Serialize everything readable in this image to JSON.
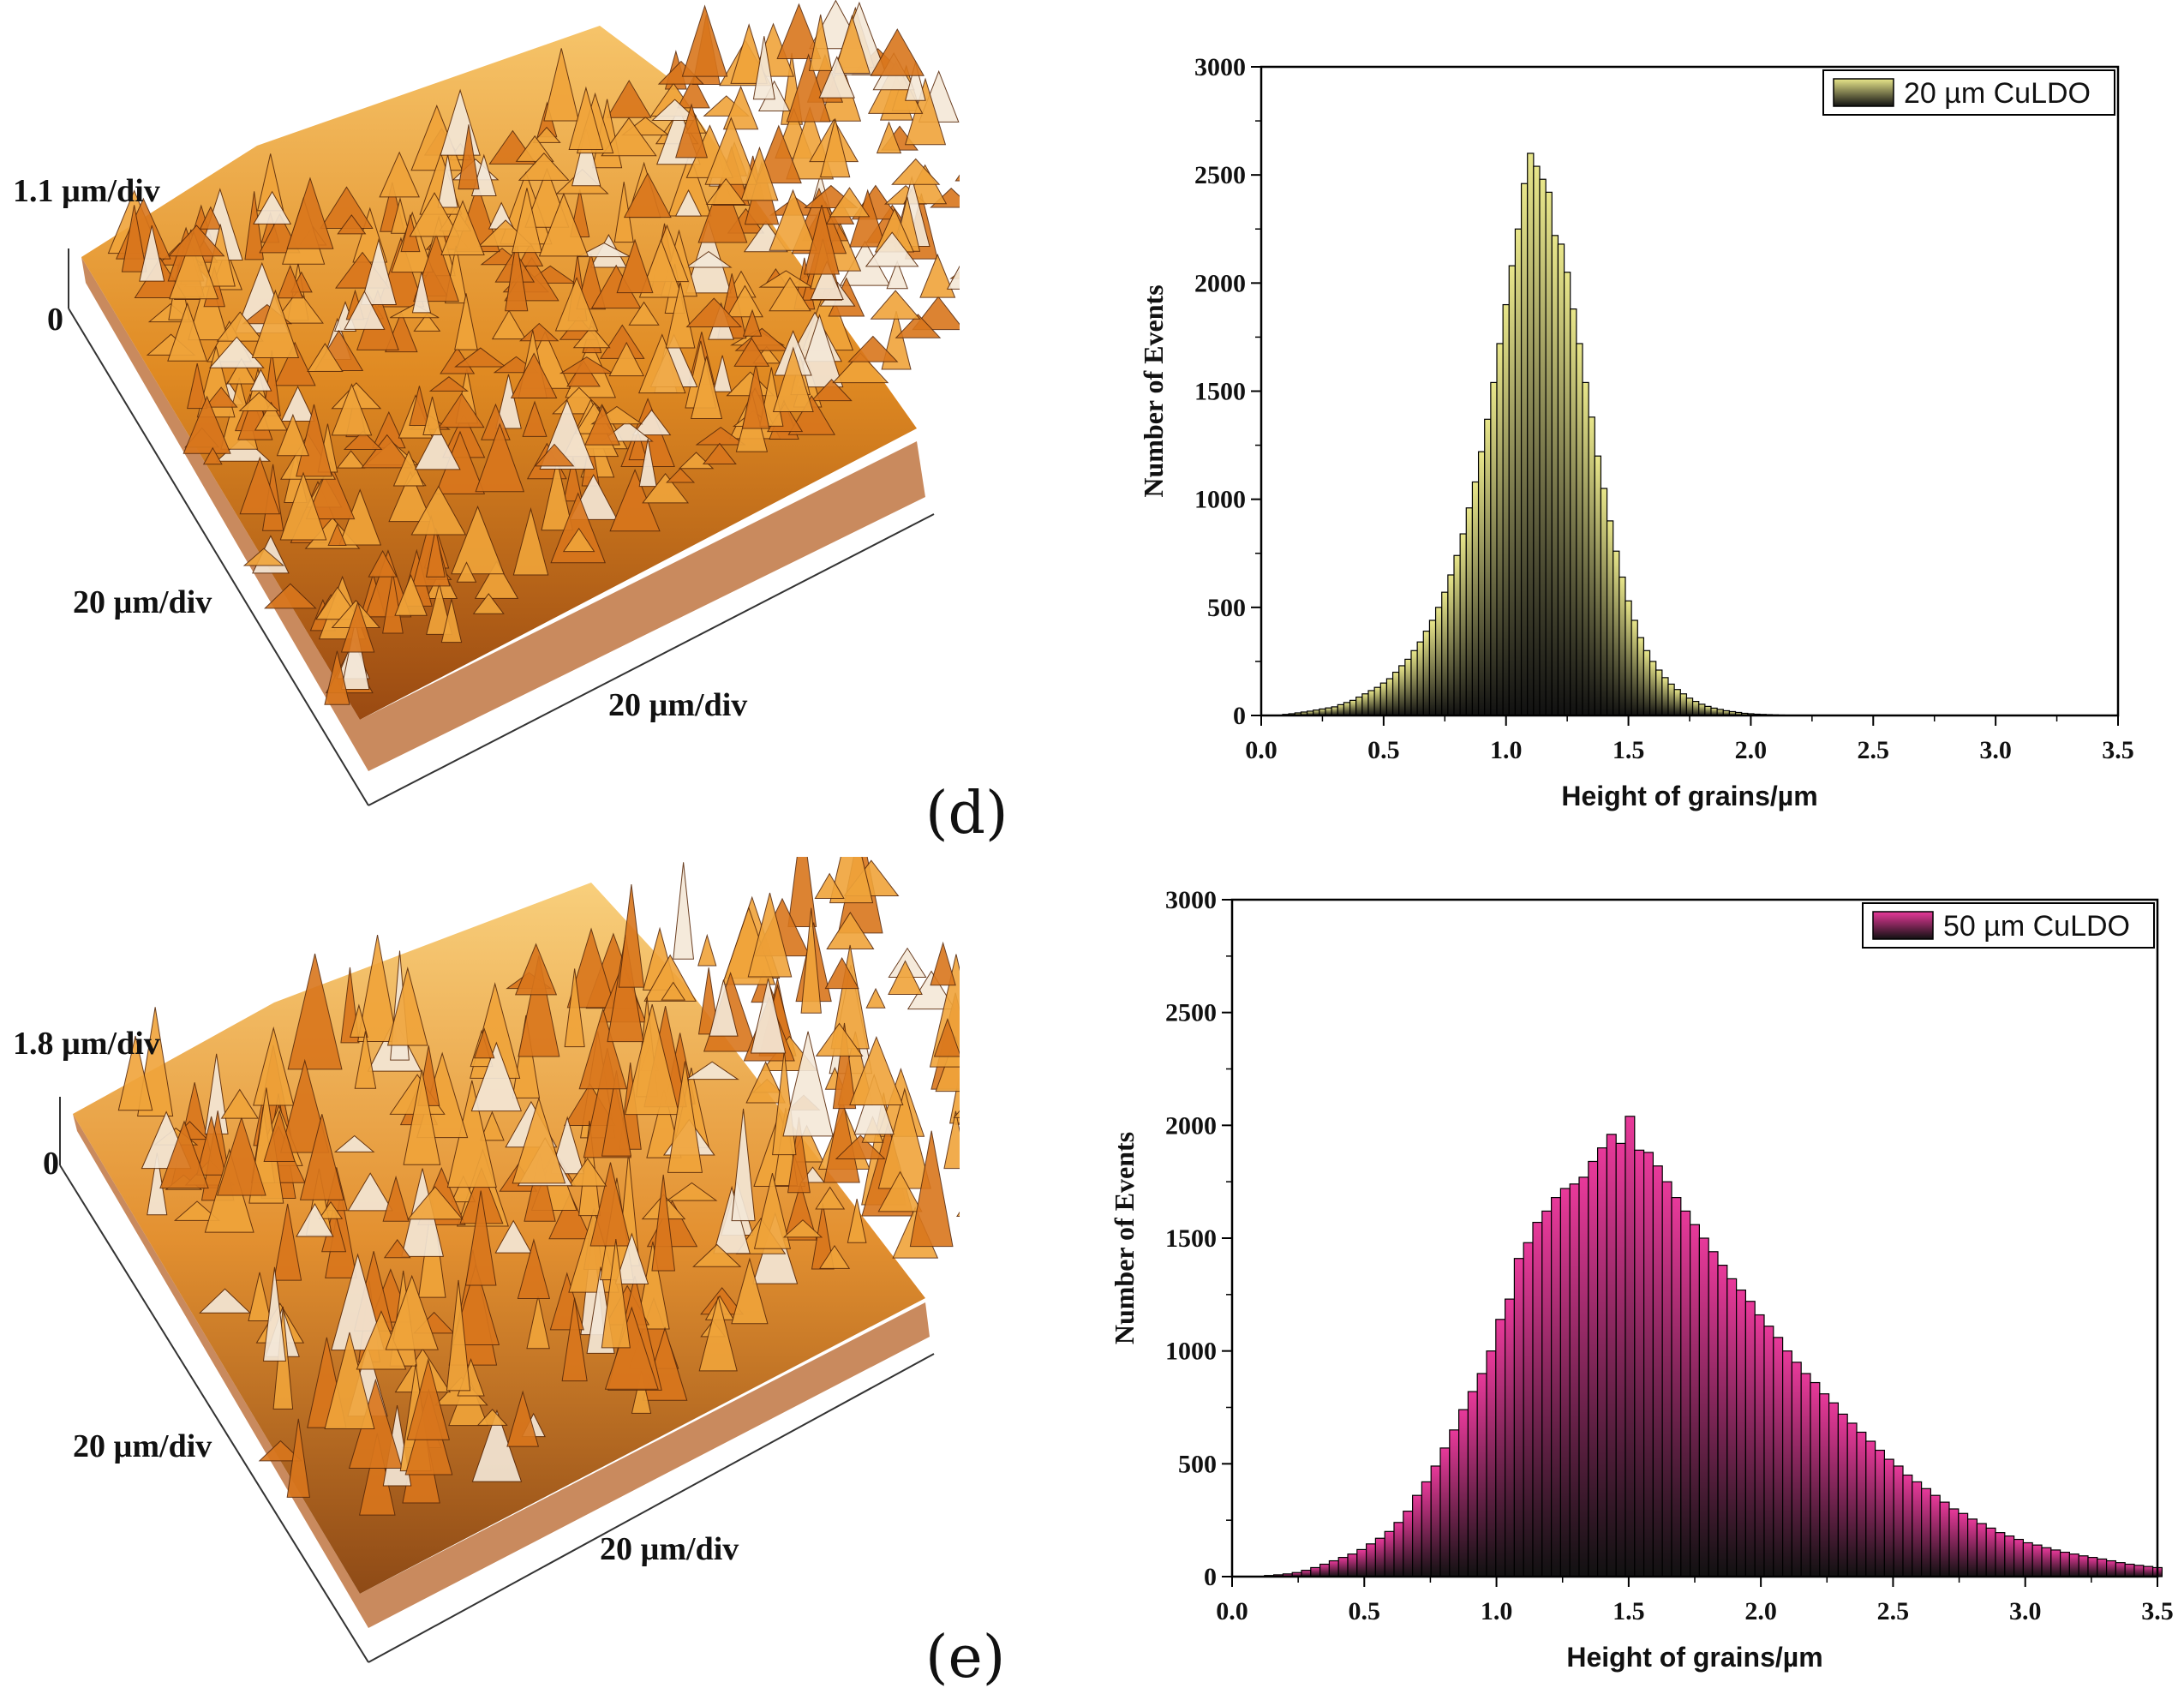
{
  "panels": {
    "d": {
      "label": "(d)",
      "afm": {
        "z_label": "1.1 µm/div",
        "zero_label": "0",
        "x_label": "20 µm/div",
        "y_label": "20 µm/div"
      }
    },
    "e": {
      "label": "(e)",
      "afm": {
        "z_label": "1.8 µm/div",
        "zero_label": "0",
        "x_label": "20 µm/div",
        "y_label": "20 µm/div"
      }
    }
  },
  "chart_data": [
    {
      "type": "bar",
      "panel": "d",
      "title": "",
      "xlabel": "Height of grains/µm",
      "ylabel": "Number of Events",
      "xlim": [
        0,
        3.5
      ],
      "ylim": [
        0,
        3000
      ],
      "xticks": [
        "0.0",
        "0.5",
        "1.0",
        "1.5",
        "2.0",
        "2.5",
        "3.0",
        "3.5"
      ],
      "yticks": [
        "0",
        "500",
        "1000",
        "1500",
        "2000",
        "2500",
        "3000"
      ],
      "legend": "20 µm CuLDO",
      "legend_position": "top-right",
      "bin_width": 0.025,
      "bar_color": "#e8e68a",
      "bins": [
        [
          0.1,
          5
        ],
        [
          0.125,
          8
        ],
        [
          0.15,
          12
        ],
        [
          0.175,
          16
        ],
        [
          0.2,
          20
        ],
        [
          0.225,
          25
        ],
        [
          0.25,
          30
        ],
        [
          0.275,
          35
        ],
        [
          0.3,
          40
        ],
        [
          0.325,
          50
        ],
        [
          0.35,
          60
        ],
        [
          0.375,
          70
        ],
        [
          0.4,
          85
        ],
        [
          0.425,
          100
        ],
        [
          0.45,
          115
        ],
        [
          0.475,
          130
        ],
        [
          0.5,
          150
        ],
        [
          0.525,
          170
        ],
        [
          0.55,
          200
        ],
        [
          0.575,
          230
        ],
        [
          0.6,
          260
        ],
        [
          0.625,
          300
        ],
        [
          0.65,
          340
        ],
        [
          0.675,
          390
        ],
        [
          0.7,
          440
        ],
        [
          0.725,
          500
        ],
        [
          0.75,
          570
        ],
        [
          0.775,
          650
        ],
        [
          0.8,
          740
        ],
        [
          0.825,
          840
        ],
        [
          0.85,
          960
        ],
        [
          0.875,
          1080
        ],
        [
          0.9,
          1220
        ],
        [
          0.925,
          1370
        ],
        [
          0.95,
          1540
        ],
        [
          0.975,
          1720
        ],
        [
          1.0,
          1900
        ],
        [
          1.025,
          2080
        ],
        [
          1.05,
          2250
        ],
        [
          1.075,
          2460
        ],
        [
          1.1,
          2600
        ],
        [
          1.125,
          2540
        ],
        [
          1.15,
          2480
        ],
        [
          1.175,
          2420
        ],
        [
          1.2,
          2220
        ],
        [
          1.225,
          2180
        ],
        [
          1.25,
          2050
        ],
        [
          1.275,
          1880
        ],
        [
          1.3,
          1720
        ],
        [
          1.325,
          1540
        ],
        [
          1.35,
          1380
        ],
        [
          1.375,
          1200
        ],
        [
          1.4,
          1050
        ],
        [
          1.425,
          900
        ],
        [
          1.45,
          760
        ],
        [
          1.475,
          640
        ],
        [
          1.5,
          530
        ],
        [
          1.525,
          440
        ],
        [
          1.55,
          360
        ],
        [
          1.575,
          300
        ],
        [
          1.6,
          250
        ],
        [
          1.625,
          210
        ],
        [
          1.65,
          175
        ],
        [
          1.675,
          145
        ],
        [
          1.7,
          120
        ],
        [
          1.725,
          100
        ],
        [
          1.75,
          80
        ],
        [
          1.775,
          65
        ],
        [
          1.8,
          52
        ],
        [
          1.825,
          42
        ],
        [
          1.85,
          34
        ],
        [
          1.875,
          28
        ],
        [
          1.9,
          22
        ],
        [
          1.925,
          18
        ],
        [
          1.95,
          14
        ],
        [
          1.975,
          10
        ],
        [
          2.0,
          8
        ],
        [
          2.025,
          6
        ],
        [
          2.05,
          5
        ],
        [
          2.075,
          4
        ],
        [
          2.1,
          3
        ],
        [
          2.125,
          2
        ]
      ]
    },
    {
      "type": "bar",
      "panel": "e",
      "title": "",
      "xlabel": "Height of grains/µm",
      "ylabel": "Number of Events",
      "xlim": [
        0,
        3.5
      ],
      "ylim": [
        0,
        3000
      ],
      "xticks": [
        "0.0",
        "0.5",
        "1.0",
        "1.5",
        "2.0",
        "2.5",
        "3.0",
        "3.5"
      ],
      "yticks": [
        "0",
        "500",
        "1000",
        "1500",
        "2000",
        "2500",
        "3000"
      ],
      "legend": "50 µm  CuLDO",
      "legend_position": "top-right",
      "bin_width": 0.035,
      "bar_color": "#e8399a",
      "bins": [
        [
          0.14,
          5
        ],
        [
          0.175,
          8
        ],
        [
          0.21,
          12
        ],
        [
          0.245,
          18
        ],
        [
          0.28,
          28
        ],
        [
          0.315,
          40
        ],
        [
          0.35,
          55
        ],
        [
          0.385,
          70
        ],
        [
          0.42,
          85
        ],
        [
          0.455,
          100
        ],
        [
          0.49,
          120
        ],
        [
          0.525,
          145
        ],
        [
          0.56,
          170
        ],
        [
          0.595,
          200
        ],
        [
          0.63,
          240
        ],
        [
          0.665,
          290
        ],
        [
          0.7,
          360
        ],
        [
          0.735,
          420
        ],
        [
          0.77,
          490
        ],
        [
          0.805,
          570
        ],
        [
          0.84,
          650
        ],
        [
          0.875,
          740
        ],
        [
          0.91,
          820
        ],
        [
          0.945,
          900
        ],
        [
          0.98,
          1000
        ],
        [
          1.015,
          1140
        ],
        [
          1.05,
          1230
        ],
        [
          1.085,
          1410
        ],
        [
          1.12,
          1480
        ],
        [
          1.155,
          1570
        ],
        [
          1.19,
          1620
        ],
        [
          1.225,
          1680
        ],
        [
          1.26,
          1720
        ],
        [
          1.295,
          1740
        ],
        [
          1.33,
          1770
        ],
        [
          1.365,
          1840
        ],
        [
          1.4,
          1900
        ],
        [
          1.435,
          1960
        ],
        [
          1.47,
          1920
        ],
        [
          1.505,
          2040
        ],
        [
          1.54,
          1890
        ],
        [
          1.575,
          1880
        ],
        [
          1.61,
          1820
        ],
        [
          1.645,
          1750
        ],
        [
          1.68,
          1680
        ],
        [
          1.715,
          1620
        ],
        [
          1.75,
          1560
        ],
        [
          1.785,
          1500
        ],
        [
          1.82,
          1440
        ],
        [
          1.855,
          1380
        ],
        [
          1.89,
          1320
        ],
        [
          1.925,
          1270
        ],
        [
          1.96,
          1220
        ],
        [
          1.995,
          1160
        ],
        [
          2.03,
          1110
        ],
        [
          2.065,
          1060
        ],
        [
          2.1,
          1000
        ],
        [
          2.135,
          950
        ],
        [
          2.17,
          900
        ],
        [
          2.205,
          860
        ],
        [
          2.24,
          810
        ],
        [
          2.275,
          770
        ],
        [
          2.31,
          720
        ],
        [
          2.345,
          680
        ],
        [
          2.38,
          640
        ],
        [
          2.415,
          600
        ],
        [
          2.45,
          560
        ],
        [
          2.485,
          520
        ],
        [
          2.52,
          490
        ],
        [
          2.555,
          450
        ],
        [
          2.59,
          420
        ],
        [
          2.625,
          390
        ],
        [
          2.66,
          360
        ],
        [
          2.695,
          330
        ],
        [
          2.73,
          300
        ],
        [
          2.765,
          280
        ],
        [
          2.8,
          255
        ],
        [
          2.835,
          235
        ],
        [
          2.87,
          215
        ],
        [
          2.905,
          195
        ],
        [
          2.94,
          180
        ],
        [
          2.975,
          165
        ],
        [
          3.01,
          150
        ],
        [
          3.045,
          140
        ],
        [
          3.08,
          128
        ],
        [
          3.115,
          118
        ],
        [
          3.15,
          108
        ],
        [
          3.185,
          100
        ],
        [
          3.22,
          92
        ],
        [
          3.255,
          85
        ],
        [
          3.29,
          78
        ],
        [
          3.325,
          70
        ],
        [
          3.36,
          62
        ],
        [
          3.395,
          55
        ],
        [
          3.43,
          50
        ],
        [
          3.465,
          45
        ],
        [
          3.5,
          40
        ]
      ]
    }
  ]
}
